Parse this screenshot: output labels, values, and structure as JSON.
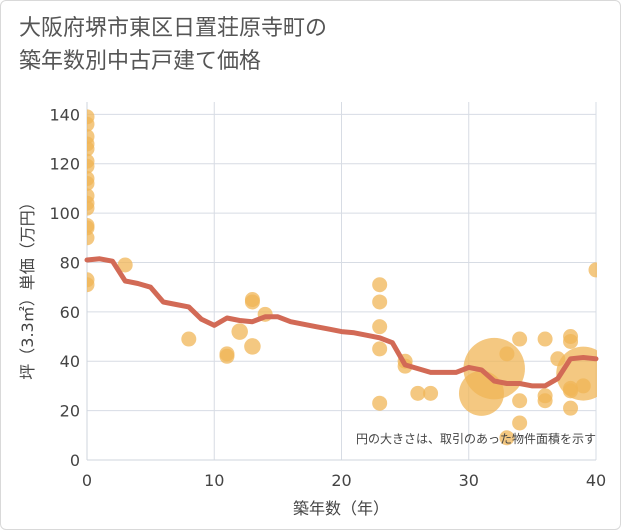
{
  "chart_data": {
    "type": "scatter",
    "title": "大阪府堺市東区日置荘原寺町の\n築年数別中古戸建て価格",
    "xlabel": "築年数（年）",
    "ylabel": "坪（3.3㎡）単価（万円）",
    "xlim": [
      0,
      40
    ],
    "ylim": [
      0,
      145
    ],
    "xticks": [
      0,
      10,
      20,
      30,
      40
    ],
    "yticks": [
      0,
      20,
      40,
      60,
      80,
      100,
      120,
      140
    ],
    "grid": true,
    "note": "円の大きさは、取引のあった物件面積を示す",
    "colors": {
      "points": "#f0b557",
      "trend": "#d26a56",
      "grid": "#d7dce4",
      "text": "#444444"
    },
    "points": [
      {
        "x": 0,
        "y": 139,
        "s": 1
      },
      {
        "x": 0,
        "y": 136,
        "s": 1
      },
      {
        "x": 0,
        "y": 131,
        "s": 1
      },
      {
        "x": 0,
        "y": 128,
        "s": 1
      },
      {
        "x": 0,
        "y": 126,
        "s": 1
      },
      {
        "x": 0,
        "y": 121,
        "s": 1
      },
      {
        "x": 0,
        "y": 119,
        "s": 1
      },
      {
        "x": 0,
        "y": 114,
        "s": 1
      },
      {
        "x": 0,
        "y": 112,
        "s": 1
      },
      {
        "x": 0,
        "y": 107,
        "s": 1
      },
      {
        "x": 0,
        "y": 104,
        "s": 1
      },
      {
        "x": 0,
        "y": 102,
        "s": 1
      },
      {
        "x": 0,
        "y": 95,
        "s": 1
      },
      {
        "x": 0,
        "y": 94,
        "s": 1
      },
      {
        "x": 0,
        "y": 90,
        "s": 1
      },
      {
        "x": 0,
        "y": 73,
        "s": 1
      },
      {
        "x": 0,
        "y": 71,
        "s": 1
      },
      {
        "x": 3,
        "y": 79,
        "s": 1
      },
      {
        "x": 8,
        "y": 49,
        "s": 1
      },
      {
        "x": 11,
        "y": 43,
        "s": 1
      },
      {
        "x": 11,
        "y": 42,
        "s": 1
      },
      {
        "x": 12,
        "y": 52,
        "s": 1.1
      },
      {
        "x": 13,
        "y": 65,
        "s": 1
      },
      {
        "x": 13,
        "y": 64,
        "s": 1
      },
      {
        "x": 13,
        "y": 46,
        "s": 1.1
      },
      {
        "x": 14,
        "y": 59,
        "s": 1
      },
      {
        "x": 23,
        "y": 71,
        "s": 1
      },
      {
        "x": 23,
        "y": 64,
        "s": 1
      },
      {
        "x": 23,
        "y": 54,
        "s": 1
      },
      {
        "x": 23,
        "y": 45,
        "s": 1
      },
      {
        "x": 23,
        "y": 23,
        "s": 1
      },
      {
        "x": 25,
        "y": 40,
        "s": 1
      },
      {
        "x": 25,
        "y": 38,
        "s": 1
      },
      {
        "x": 26,
        "y": 27,
        "s": 1
      },
      {
        "x": 27,
        "y": 27,
        "s": 1
      },
      {
        "x": 31,
        "y": 27,
        "s": 3
      },
      {
        "x": 32,
        "y": 37,
        "s": 4.1
      },
      {
        "x": 33,
        "y": 43,
        "s": 1
      },
      {
        "x": 33,
        "y": 9,
        "s": 1
      },
      {
        "x": 34,
        "y": 49,
        "s": 1
      },
      {
        "x": 34,
        "y": 24,
        "s": 1
      },
      {
        "x": 34,
        "y": 15,
        "s": 1
      },
      {
        "x": 36,
        "y": 49,
        "s": 1
      },
      {
        "x": 36,
        "y": 26,
        "s": 1
      },
      {
        "x": 36,
        "y": 24,
        "s": 1
      },
      {
        "x": 37,
        "y": 41,
        "s": 1
      },
      {
        "x": 38,
        "y": 50,
        "s": 1
      },
      {
        "x": 38,
        "y": 48,
        "s": 1
      },
      {
        "x": 38,
        "y": 29,
        "s": 1
      },
      {
        "x": 38,
        "y": 28,
        "s": 1
      },
      {
        "x": 38,
        "y": 21,
        "s": 1
      },
      {
        "x": 39,
        "y": 35,
        "s": 3.6
      },
      {
        "x": 39,
        "y": 30,
        "s": 1
      },
      {
        "x": 40,
        "y": 77,
        "s": 1
      }
    ],
    "trend": {
      "x": [
        0,
        1,
        2,
        3,
        4,
        5,
        6,
        7,
        8,
        9,
        10,
        11,
        12,
        13,
        14,
        15,
        16,
        17,
        18,
        19,
        20,
        21,
        22,
        23,
        24,
        25,
        26,
        27,
        28,
        29,
        30,
        31,
        32,
        33,
        34,
        35,
        36,
        37,
        38,
        39,
        40
      ],
      "y": [
        81,
        81.5,
        80.5,
        72.5,
        71.5,
        70,
        64,
        63,
        62,
        57,
        54.5,
        57.5,
        56.5,
        56,
        58,
        58,
        56,
        55,
        54,
        53,
        52,
        51.5,
        50.5,
        49.5,
        47.5,
        38.5,
        37,
        35.5,
        35.5,
        35.5,
        37.5,
        36.5,
        32,
        31,
        31,
        30,
        30,
        33,
        41,
        41.5,
        41
      ]
    }
  }
}
